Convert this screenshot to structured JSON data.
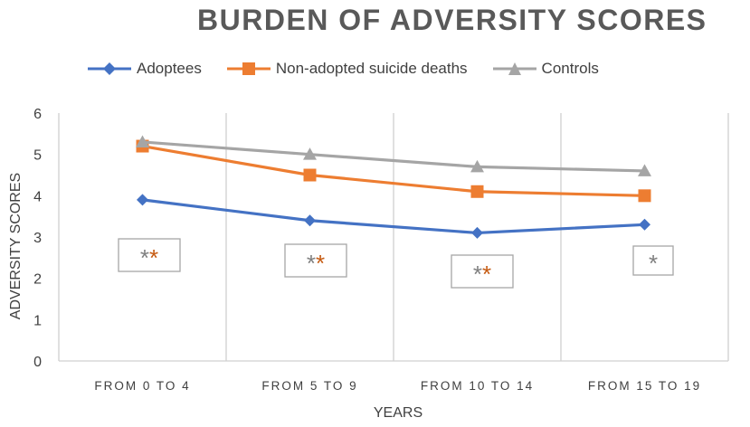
{
  "chart_data": {
    "type": "line",
    "title": "BURDEN OF ADVERSITY SCORES",
    "xlabel": "YEARS",
    "ylabel": "ADVERSITY SCORES",
    "ylim": [
      0,
      6
    ],
    "yticks": [
      0,
      1,
      2,
      3,
      4,
      5,
      6
    ],
    "categories": [
      "FROM 0 TO 4",
      "FROM 5 TO 9",
      "FROM 10 TO 14",
      "FROM 15 TO 19"
    ],
    "series": [
      {
        "name": "Adoptees",
        "color": "#4472C4",
        "marker": "diamond",
        "values": [
          3.9,
          3.4,
          3.1,
          3.3
        ]
      },
      {
        "name": "Non-adopted suicide deaths",
        "color": "#ED7D31",
        "marker": "square",
        "values": [
          5.2,
          4.5,
          4.1,
          4.0
        ]
      },
      {
        "name": "Controls",
        "color": "#A5A5A5",
        "marker": "triangle",
        "values": [
          5.3,
          5.0,
          4.7,
          4.6
        ]
      }
    ],
    "grid": "vertical category separators",
    "legend": "top",
    "annotations": [
      {
        "category": "FROM 0 TO 4",
        "symbols": [
          {
            "text": "*",
            "color": "#7F7F7F"
          },
          {
            "text": "*",
            "color": "#C55A11"
          }
        ]
      },
      {
        "category": "FROM 5 TO 9",
        "symbols": [
          {
            "text": "*",
            "color": "#7F7F7F"
          },
          {
            "text": "*",
            "color": "#C55A11"
          }
        ]
      },
      {
        "category": "FROM 10 TO 14",
        "symbols": [
          {
            "text": "*",
            "color": "#7F7F7F"
          },
          {
            "text": "*",
            "color": "#C55A11"
          }
        ]
      },
      {
        "category": "FROM 15 TO 19",
        "symbols": [
          {
            "text": "*",
            "color": "#7F7F7F"
          }
        ]
      }
    ]
  }
}
